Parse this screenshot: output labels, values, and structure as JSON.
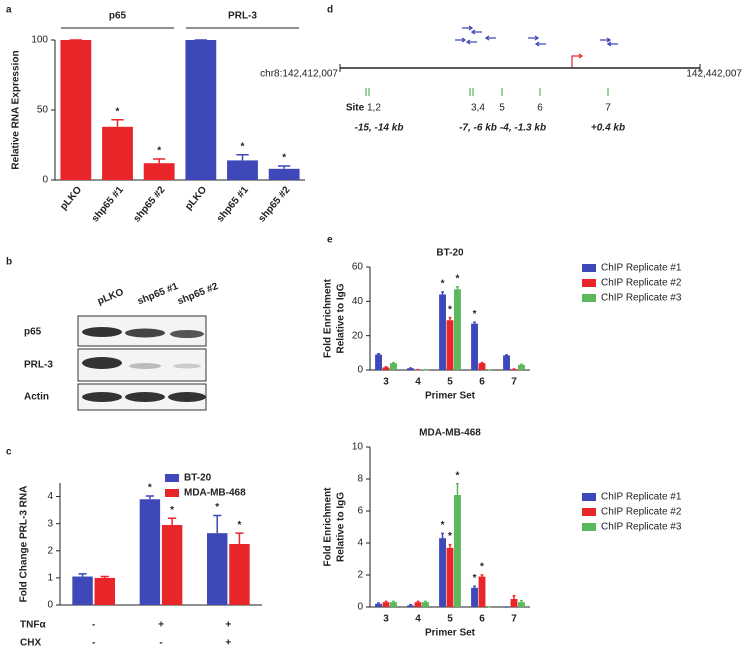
{
  "panel_labels": [
    "a",
    "b",
    "c",
    "d",
    "e"
  ],
  "chart_data": [
    {
      "type": "bar",
      "y_label": "Relative RNA Expression",
      "ylim": [
        0,
        100
      ],
      "yticks": [
        0,
        50,
        100
      ],
      "groups": [
        {
          "name": "p65",
          "color": "#e8262a",
          "categories": [
            "pLKO",
            "shp65 #1",
            "shp65 #2"
          ],
          "values": [
            100,
            38,
            12
          ],
          "errors": [
            0,
            5,
            3
          ],
          "stars": [
            null,
            "*",
            "*"
          ]
        },
        {
          "name": "PRL-3",
          "color": "#3f48b8",
          "categories": [
            "pLKO",
            "shp65 #1",
            "shp65 #2"
          ],
          "values": [
            100,
            14,
            8
          ],
          "errors": [
            0,
            4,
            2
          ],
          "stars": [
            null,
            "*",
            "*"
          ]
        }
      ]
    },
    {
      "type": "bar",
      "y_label": "Fold Change PRL-3 RNA",
      "ylim": [
        0,
        4.5
      ],
      "yticks": [
        0,
        1,
        2,
        3,
        4
      ],
      "categories": [
        null,
        null,
        null
      ],
      "legend": "top-right",
      "series": [
        {
          "name": "BT-20",
          "color": "#3f48b8",
          "values": [
            1.05,
            3.9,
            2.65
          ],
          "errors": [
            0.1,
            0.12,
            0.65
          ],
          "stars": [
            null,
            "*",
            "*"
          ]
        },
        {
          "name": "MDA-MB-468",
          "color": "#e8262a",
          "values": [
            1.0,
            2.95,
            2.25
          ],
          "errors": [
            0.05,
            0.25,
            0.4
          ],
          "stars": [
            null,
            "*",
            "*"
          ]
        }
      ],
      "treatments": [
        {
          "name": "TNFα",
          "levels": [
            "-",
            "+",
            "+"
          ]
        },
        {
          "name": "CHX",
          "levels": [
            "-",
            "-",
            "+"
          ]
        }
      ]
    },
    {
      "type": "bar",
      "title": "BT-20",
      "y_label": [
        "Fold  Enrichment",
        "Relative to IgG"
      ],
      "x_label": "Primer Set",
      "ylim": [
        0,
        60
      ],
      "yticks": [
        0,
        20,
        40,
        60
      ],
      "categories": [
        "3",
        "4",
        "5",
        "6",
        "7"
      ],
      "legend": "right",
      "series": [
        {
          "name": "ChIP Replicate #1",
          "color": "#3f48b8",
          "values": [
            9,
            1,
            44,
            27,
            8.5
          ],
          "errors": [
            0.5,
            0.2,
            1.5,
            0.8,
            0.3
          ],
          "stars": [
            null,
            null,
            "*",
            "*",
            null
          ]
        },
        {
          "name": "ChIP Replicate #2",
          "color": "#e8262a",
          "values": [
            1.5,
            0.2,
            29,
            4,
            0.5
          ],
          "errors": [
            0.3,
            0,
            1.5,
            0.3,
            0.1
          ],
          "stars": [
            null,
            null,
            "*",
            null,
            null
          ]
        },
        {
          "name": "ChIP Replicate #3",
          "color": "#5cb85c",
          "values": [
            4,
            0.2,
            47,
            0,
            3
          ],
          "errors": [
            0.3,
            0,
            1.5,
            0,
            0.3
          ],
          "stars": [
            null,
            null,
            "*",
            null,
            null
          ]
        }
      ]
    },
    {
      "type": "bar",
      "title": "MDA-MB-468",
      "y_label": [
        "Fold  Enrichment",
        "Relative to IgG"
      ],
      "x_label": "Primer Set",
      "ylim": [
        0,
        10
      ],
      "yticks": [
        0,
        2,
        4,
        6,
        8,
        10
      ],
      "categories": [
        "3",
        "4",
        "5",
        "6",
        "7"
      ],
      "legend": "right",
      "series": [
        {
          "name": "ChIP Replicate #1",
          "color": "#3f48b8",
          "values": [
            0.2,
            0.1,
            4.3,
            1.2,
            0
          ],
          "errors": [
            0.05,
            0.05,
            0.3,
            0.1,
            0
          ],
          "stars": [
            null,
            null,
            "*",
            "*",
            null
          ]
        },
        {
          "name": "ChIP Replicate #2",
          "color": "#e8262a",
          "values": [
            0.3,
            0.3,
            3.7,
            1.9,
            0.5
          ],
          "errors": [
            0.05,
            0.05,
            0.2,
            0.1,
            0.2
          ],
          "stars": [
            null,
            null,
            "*",
            "*",
            null
          ]
        },
        {
          "name": "ChIP Replicate #3",
          "color": "#5cb85c",
          "values": [
            0.3,
            0.3,
            7.0,
            0,
            0.3
          ],
          "errors": [
            0.05,
            0.05,
            0.7,
            0,
            0.1
          ],
          "stars": [
            null,
            null,
            "*",
            null,
            null
          ]
        }
      ]
    }
  ],
  "blot": {
    "lanes": [
      "pLKO",
      "shp65 #1",
      "shp65 #2"
    ],
    "rows": [
      "p65",
      "PRL-3",
      "Actin"
    ]
  },
  "diagram": {
    "start": "chr8:142,412,007",
    "end": "142,442,007",
    "site_label": "Site",
    "sites": [
      "1,2",
      "3,4",
      "5",
      "6",
      "7"
    ],
    "distances": [
      "-15, -14 kb",
      "-7, -6 kb",
      "-4, -1.3 kb",
      "+0.4 kb"
    ]
  }
}
